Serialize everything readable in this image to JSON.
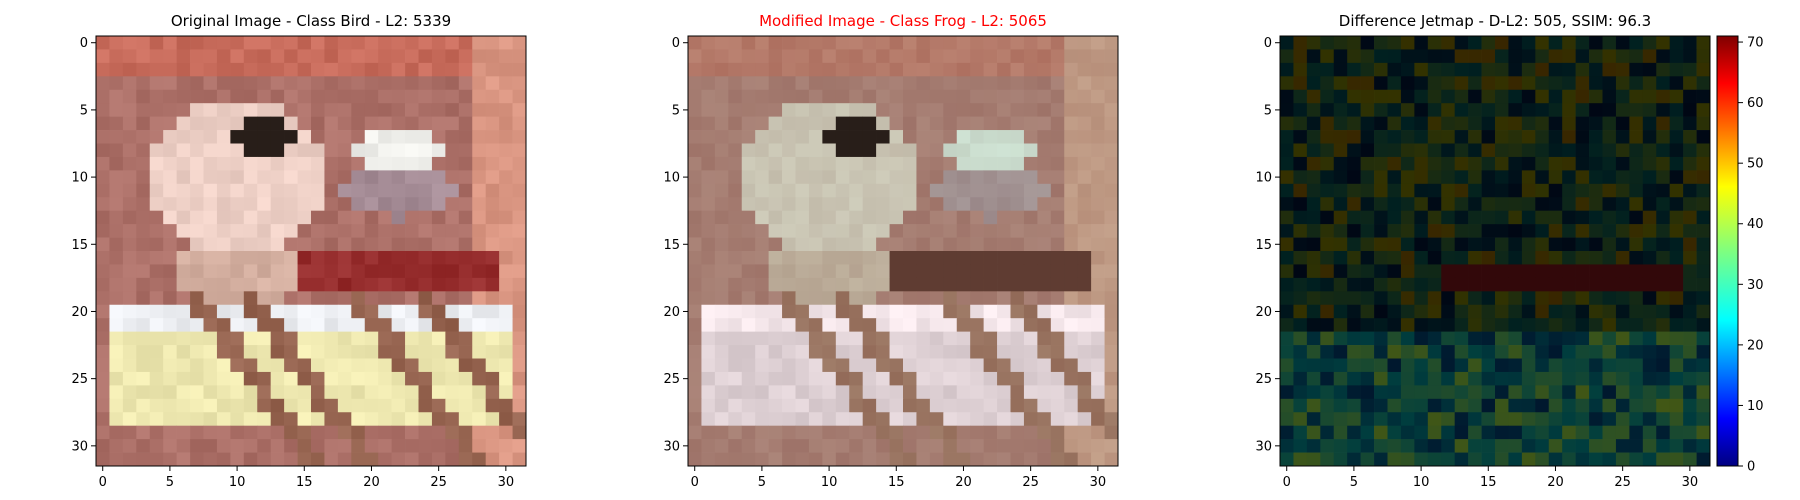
{
  "figure": {
    "panels": [
      {
        "title": "Original Image - Class Bird - L2: 5339",
        "title_color": "#000000",
        "kind": "image",
        "source": "original"
      },
      {
        "title": "Modified Image - Class Frog - L2: 5065",
        "title_color": "#ff0000",
        "kind": "image",
        "source": "modified"
      },
      {
        "title": "Difference Jetmap - D-L2: 505, SSIM: 96.3",
        "title_color": "#000000",
        "kind": "jetmap",
        "source": "difference"
      }
    ],
    "x_ticks": [
      "0",
      "5",
      "10",
      "15",
      "20",
      "25",
      "30"
    ],
    "y_ticks": [
      "0",
      "5",
      "10",
      "15",
      "20",
      "25",
      "30"
    ],
    "colorbar": {
      "ticks": [
        "0",
        "10",
        "20",
        "30",
        "40",
        "50",
        "60",
        "70"
      ],
      "range": [
        0,
        71
      ],
      "colormap": "jet"
    }
  },
  "chart_data": [
    {
      "type": "heatmap",
      "title": "Original Image - Class Bird - L2: 5339",
      "xlim": [
        -0.5,
        31.5
      ],
      "ylim": [
        31.5,
        -0.5
      ],
      "grid": false
    },
    {
      "type": "heatmap",
      "title": "Modified Image - Class Frog - L2: 5065",
      "xlim": [
        -0.5,
        31.5
      ],
      "ylim": [
        31.5,
        -0.5
      ],
      "grid": false
    },
    {
      "type": "heatmap",
      "title": "Difference Jetmap - D-L2: 505, SSIM: 96.3",
      "xlim": [
        -0.5,
        31.5
      ],
      "ylim": [
        31.5,
        -0.5
      ],
      "grid": false,
      "colorbar_range": [
        0,
        71
      ]
    }
  ]
}
